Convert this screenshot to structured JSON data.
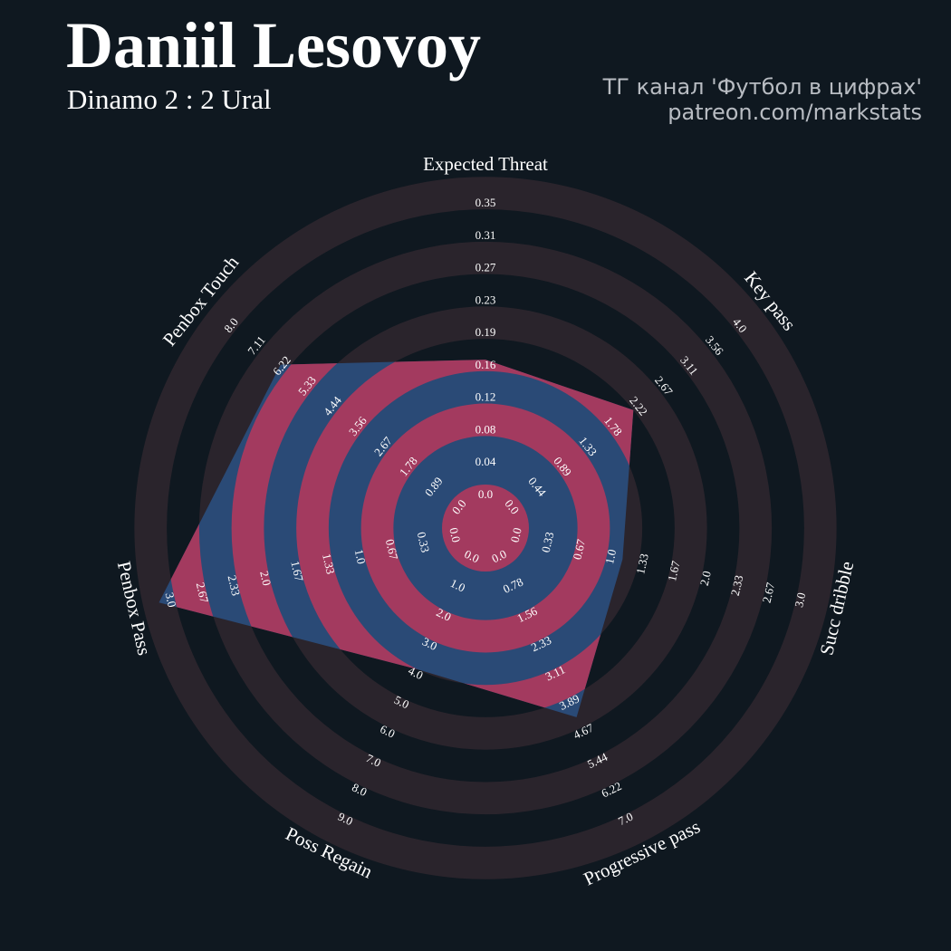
{
  "header": {
    "title": "Daniil Lesovoy",
    "subtitle": "Dinamo 2 : 2 Ural",
    "credit_line1": "ТГ канал 'Футбол в цифрах'",
    "credit_line2": "patreon.com/markstats"
  },
  "colors": {
    "background": "#0f1820",
    "ring": "#2a242c",
    "polygon_blue": "#2a4a76",
    "polygon_pink": "#a33a5f",
    "text": "#ffffff"
  },
  "chart_data": {
    "type": "radar",
    "title": "Daniil Lesovoy",
    "subtitle": "Dinamo 2 : 2 Ural",
    "grid": true,
    "parameters": [
      {
        "name": "Expected Threat",
        "ticks": [
          "0.0",
          "0.04",
          "0.08",
          "0.12",
          "0.16",
          "0.19",
          "0.23",
          "0.27",
          "0.31",
          "0.35"
        ],
        "min": 0,
        "max": 0.35,
        "value": 0.15
      },
      {
        "name": "Key pass",
        "ticks": [
          "0.0",
          "0.44",
          "0.89",
          "1.33",
          "1.78",
          "2.22",
          "2.67",
          "3.11",
          "3.56",
          "4.0"
        ],
        "min": 0,
        "max": 4.0,
        "value": 2.0
      },
      {
        "name": "Succ dribble",
        "ticks": [
          "0.0",
          "0.33",
          "0.67",
          "1.0",
          "1.33",
          "1.67",
          "2.0",
          "2.33",
          "2.67",
          "3.0"
        ],
        "min": 0,
        "max": 3.0,
        "value": 1.0
      },
      {
        "name": "Progressive pass",
        "ticks": [
          "0.0",
          "0.78",
          "1.56",
          "2.33",
          "3.11",
          "3.89",
          "4.67",
          "5.44",
          "6.22",
          "7.0"
        ],
        "min": 0,
        "max": 7.0,
        "value": 4.0
      },
      {
        "name": "Poss Regain",
        "ticks": [
          "0.0",
          "1.0",
          "2.0",
          "3.0",
          "4.0",
          "5.0",
          "6.0",
          "7.0",
          "8.0",
          "9.0"
        ],
        "min": 0,
        "max": 9.0,
        "value": 3.5
      },
      {
        "name": "Penbox Pass",
        "ticks": [
          "0.0",
          "0.33",
          "0.67",
          "1.0",
          "1.33",
          "1.67",
          "2.0",
          "2.33",
          "2.67",
          "3.0"
        ],
        "min": 0,
        "max": 3.0,
        "value": 3.0
      },
      {
        "name": "Penbox Touch",
        "ticks": [
          "0.0",
          "0.89",
          "1.78",
          "2.67",
          "3.56",
          "4.44",
          "5.33",
          "6.22",
          "7.11",
          "8.0"
        ],
        "min": 0,
        "max": 8.0,
        "value": 6.0
      }
    ]
  }
}
